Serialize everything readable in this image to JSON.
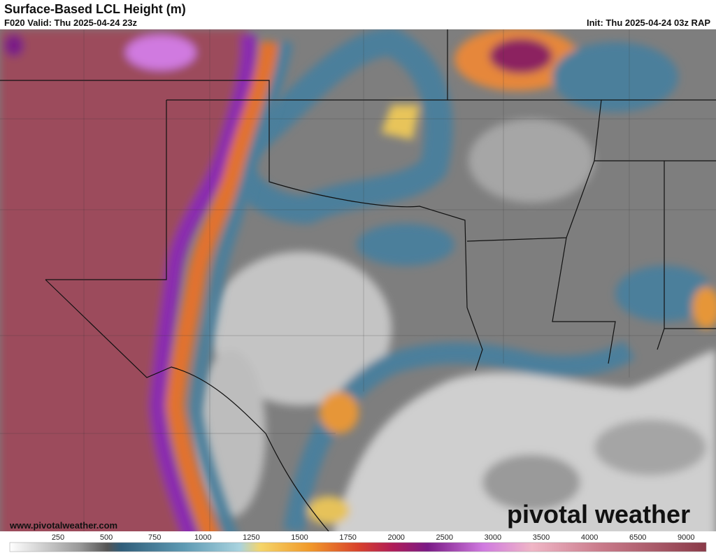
{
  "header": {
    "title": "Surface-Based LCL Height (m)",
    "valid": "F020 Valid: Thu 2025-04-24 23z",
    "init": "Init: Thu 2025-04-24 03z RAP"
  },
  "map": {
    "credit": "www.pivotalweather.com",
    "logo": "pivotal weather"
  },
  "colorbar": {
    "labels": [
      "250",
      "500",
      "750",
      "1000",
      "1250",
      "1500",
      "1750",
      "2000",
      "2500",
      "3000",
      "3500",
      "4000",
      "6500",
      "9000"
    ]
  }
}
